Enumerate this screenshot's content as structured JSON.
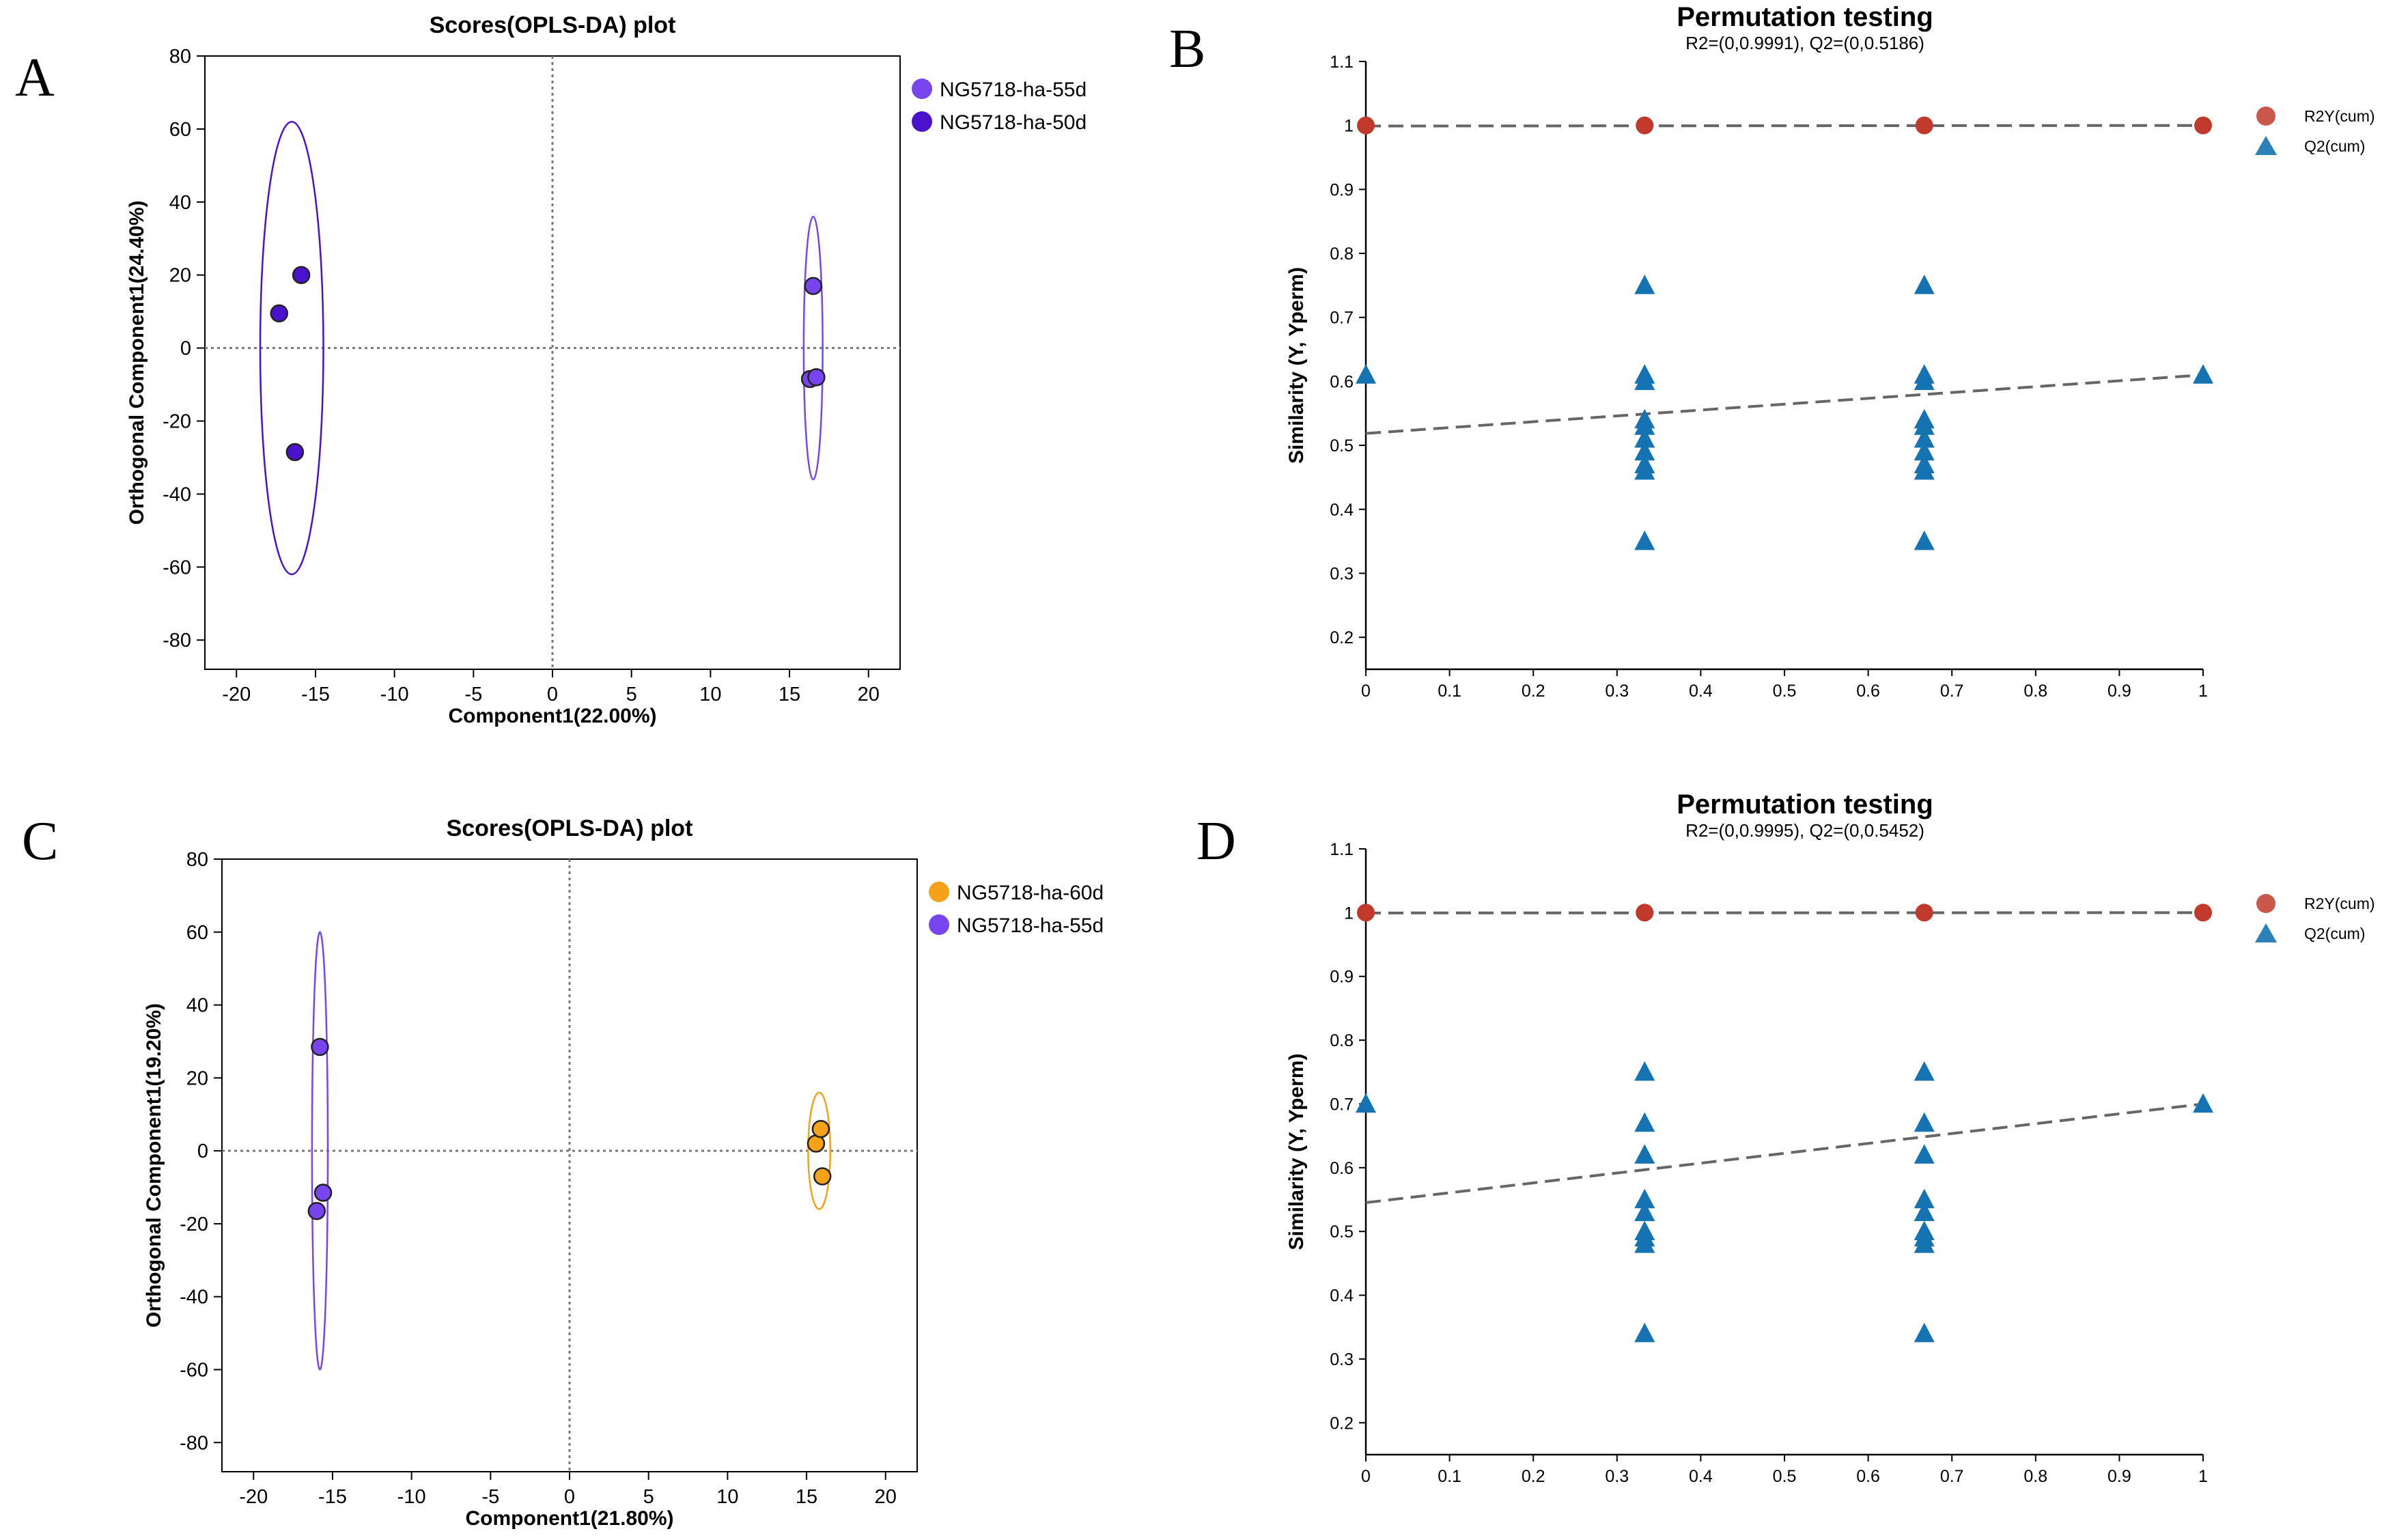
{
  "colors": {
    "purple_55d": "#7744ee",
    "purple_50d": "#4a12cc",
    "orange_60d": "#f5a11a",
    "r2_red": "#c0392b",
    "q2_blue": "#1473b0",
    "line_gray": "#666666"
  },
  "chart_data": [
    {
      "id": "A",
      "panel_label": "A",
      "type": "scatter",
      "title": "Scores(OPLS-DA) plot",
      "xlabel": "Component1(22.00%)",
      "ylabel": "Orthogonal Component1(24.40%)",
      "xlim": [
        -22,
        22
      ],
      "ylim": [
        -88,
        80
      ],
      "xticks": [
        -20,
        -15,
        -10,
        -5,
        0,
        5,
        10,
        15,
        20
      ],
      "yticks": [
        -80,
        -60,
        -40,
        -20,
        0,
        20,
        40,
        60,
        80
      ],
      "legend_position": "top-right",
      "series": [
        {
          "name": "NG5718-ha-55d",
          "color": "#7744ee",
          "points": [
            [
              16.5,
              17
            ],
            [
              16.3,
              -8.5
            ],
            [
              16.7,
              -8
            ]
          ],
          "ellipse": {
            "cx": 16.5,
            "cy": 0,
            "rx": 0.6,
            "ry": 36
          }
        },
        {
          "name": "NG5718-ha-50d",
          "color": "#4a12cc",
          "points": [
            [
              -17.3,
              9.5
            ],
            [
              -15.9,
              20
            ],
            [
              -16.3,
              -28.5
            ]
          ],
          "ellipse": {
            "cx": -16.5,
            "cy": 0,
            "rx": 2,
            "ry": 62
          }
        }
      ]
    },
    {
      "id": "C",
      "panel_label": "C",
      "type": "scatter",
      "title": "Scores(OPLS-DA) plot",
      "xlabel": "Component1(21.80%)",
      "ylabel": "Orthogonal Component1(19.20%)",
      "xlim": [
        -22,
        22
      ],
      "ylim": [
        -88,
        80
      ],
      "xticks": [
        -20,
        -15,
        -10,
        -5,
        0,
        5,
        10,
        15,
        20
      ],
      "yticks": [
        -80,
        -60,
        -40,
        -20,
        0,
        20,
        40,
        60,
        80
      ],
      "legend_position": "top-right",
      "series": [
        {
          "name": "NG5718-ha-60d",
          "color": "#f5a11a",
          "points": [
            [
              15.6,
              2
            ],
            [
              15.9,
              6
            ],
            [
              16.0,
              -7
            ]
          ],
          "ellipse": {
            "cx": 15.8,
            "cy": 0,
            "rx": 0.7,
            "ry": 16
          }
        },
        {
          "name": "NG5718-ha-55d",
          "color": "#7744ee",
          "points": [
            [
              -15.8,
              28.5
            ],
            [
              -15.6,
              -11.5
            ],
            [
              -16.0,
              -16.5
            ]
          ],
          "ellipse": {
            "cx": -15.8,
            "cy": 0,
            "rx": 0.5,
            "ry": 60
          }
        }
      ]
    },
    {
      "id": "B",
      "panel_label": "B",
      "type": "scatter",
      "title": "Permutation testing",
      "subtitle": "R2=(0,0.9991), Q2=(0,0.5186)",
      "xlabel": "",
      "ylabel": "Similarity (Y, Yperm)",
      "xlim": [
        0,
        1
      ],
      "ylim": [
        0.15,
        1.1
      ],
      "xticks": [
        0,
        0.1,
        0.2,
        0.3,
        0.4,
        0.5,
        0.6,
        0.7,
        0.8,
        0.9,
        1
      ],
      "yticks": [
        0.2,
        0.3,
        0.4,
        0.5,
        0.6,
        0.7,
        0.8,
        0.9,
        1,
        1.1
      ],
      "legend_position": "top-right",
      "series": [
        {
          "name": "R2Y(cum)",
          "marker": "circle",
          "color": "#c0392b",
          "x": [
            0,
            0.333,
            0.667,
            1
          ],
          "y": [
            1,
            1,
            1,
            1
          ],
          "regression": [
            [
              0,
              0.9991
            ],
            [
              1,
              1
            ]
          ]
        },
        {
          "name": "Q2(cum)",
          "marker": "triangle",
          "color": "#1473b0",
          "x": [
            0,
            0.333,
            0.333,
            0.333,
            0.333,
            0.333,
            0.333,
            0.333,
            0.333,
            0.333,
            0.333,
            0.667,
            0.667,
            0.667,
            0.667,
            0.667,
            0.667,
            0.667,
            0.667,
            0.667,
            0.667,
            1
          ],
          "y": [
            0.61,
            0.75,
            0.61,
            0.6,
            0.54,
            0.53,
            0.51,
            0.49,
            0.47,
            0.46,
            0.35,
            0.75,
            0.61,
            0.6,
            0.54,
            0.53,
            0.51,
            0.49,
            0.47,
            0.46,
            0.35,
            0.61
          ],
          "regression": [
            [
              0,
              0.5186
            ],
            [
              1,
              0.61
            ]
          ]
        }
      ]
    },
    {
      "id": "D",
      "panel_label": "D",
      "type": "scatter",
      "title": "Permutation testing",
      "subtitle": "R2=(0,0.9995), Q2=(0,0.5452)",
      "xlabel": "",
      "ylabel": "Similarity (Y, Yperm)",
      "xlim": [
        0,
        1
      ],
      "ylim": [
        0.15,
        1.1
      ],
      "xticks": [
        0,
        0.1,
        0.2,
        0.3,
        0.4,
        0.5,
        0.6,
        0.7,
        0.8,
        0.9,
        1
      ],
      "yticks": [
        0.2,
        0.3,
        0.4,
        0.5,
        0.6,
        0.7,
        0.8,
        0.9,
        1,
        1.1
      ],
      "legend_position": "top-right",
      "series": [
        {
          "name": "R2Y(cum)",
          "marker": "circle",
          "color": "#c0392b",
          "x": [
            0,
            0.333,
            0.667,
            1
          ],
          "y": [
            1,
            1,
            1,
            1
          ],
          "regression": [
            [
              0,
              0.9995
            ],
            [
              1,
              1
            ]
          ]
        },
        {
          "name": "Q2(cum)",
          "marker": "triangle",
          "color": "#1473b0",
          "x": [
            0,
            0.333,
            0.333,
            0.333,
            0.333,
            0.333,
            0.333,
            0.333,
            0.333,
            0.333,
            0.667,
            0.667,
            0.667,
            0.667,
            0.667,
            0.667,
            0.667,
            0.667,
            0.667,
            1
          ],
          "y": [
            0.7,
            0.75,
            0.67,
            0.62,
            0.55,
            0.53,
            0.5,
            0.49,
            0.48,
            0.34,
            0.75,
            0.67,
            0.62,
            0.55,
            0.53,
            0.5,
            0.49,
            0.48,
            0.34,
            0.7
          ],
          "regression": [
            [
              0,
              0.5452
            ],
            [
              1,
              0.7
            ]
          ]
        }
      ]
    }
  ]
}
